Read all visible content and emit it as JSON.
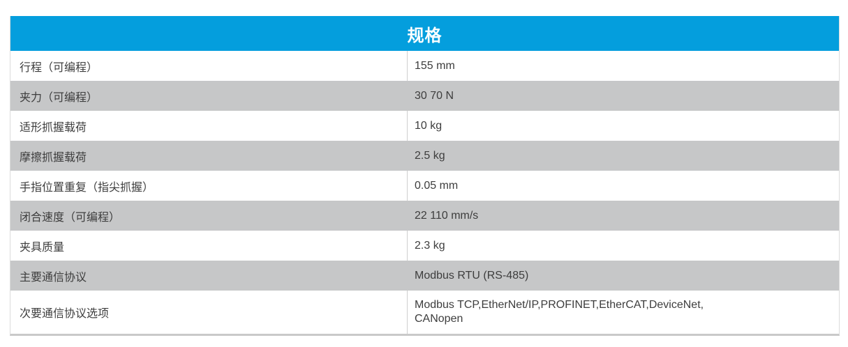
{
  "colors": {
    "header_bg": "#049edd",
    "header_text": "#ffffff",
    "row_bg": "#ffffff",
    "row_alt_bg": "#c6c7c8",
    "text": "#3d3d3d",
    "divider": "#cfcfcf",
    "outer_border": "#dcdcdc",
    "bottom_band": "#c9c9c9"
  },
  "table": {
    "title": "规格",
    "rows": [
      {
        "label": "行程（可编程）",
        "value": "155 mm"
      },
      {
        "label": "夹力（可编程）",
        "value": "30 70 N"
      },
      {
        "label": "适形抓握载荷",
        "value": "10 kg"
      },
      {
        "label": "摩擦抓握载荷",
        "value": "2.5 kg"
      },
      {
        "label": "手指位置重复（指尖抓握）",
        "value": "0.05 mm"
      },
      {
        "label": "闭合速度（可编程）",
        "value": "22 110 mm/s"
      },
      {
        "label": "夹具质量",
        "value": "2.3 kg"
      },
      {
        "label": "主要通信协议",
        "value": "Modbus RTU (RS-485)"
      },
      {
        "label": "次要通信协议选项",
        "value": "Modbus TCP,EtherNet/IP,PROFINET,EtherCAT,DeviceNet,\nCANopen"
      }
    ]
  }
}
